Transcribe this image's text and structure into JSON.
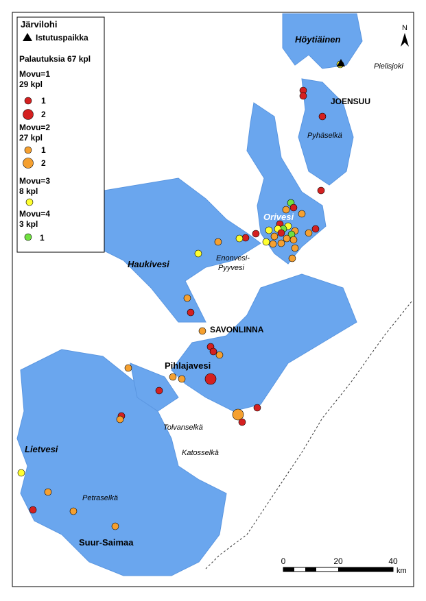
{
  "legend": {
    "title": "Järvilohi",
    "stocking": "Istutuspaikka",
    "returns": "Palautuksia 67 kpl",
    "groups": [
      {
        "name": "Movu=1",
        "count": "29 kpl",
        "sizes": [
          "1",
          "2"
        ]
      },
      {
        "name": "Movu=2",
        "count": "27 kpl",
        "sizes": [
          "1",
          "2"
        ]
      },
      {
        "name": "Movu=3",
        "count": "8 kpl",
        "sizes": []
      },
      {
        "name": "Movu=4",
        "count": "3 kpl",
        "sizes": [
          "1"
        ]
      }
    ]
  },
  "places": [
    "Höytiäinen",
    "Pielisjoki",
    "JOENSUU",
    "Pyhäselkä",
    "Orivesi",
    "Enonvesi-",
    "Pyyvesi",
    "Haukivesi",
    "SAVONLINNA",
    "Pihlajavesi",
    "Tolvanselkä",
    "Katosselkä",
    "Lietvesi",
    "Petraselkä",
    "Suur-Saimaa"
  ],
  "north": "N",
  "scale_bar": {
    "ticks": [
      0,
      20,
      40
    ],
    "unit": "km"
  }
}
